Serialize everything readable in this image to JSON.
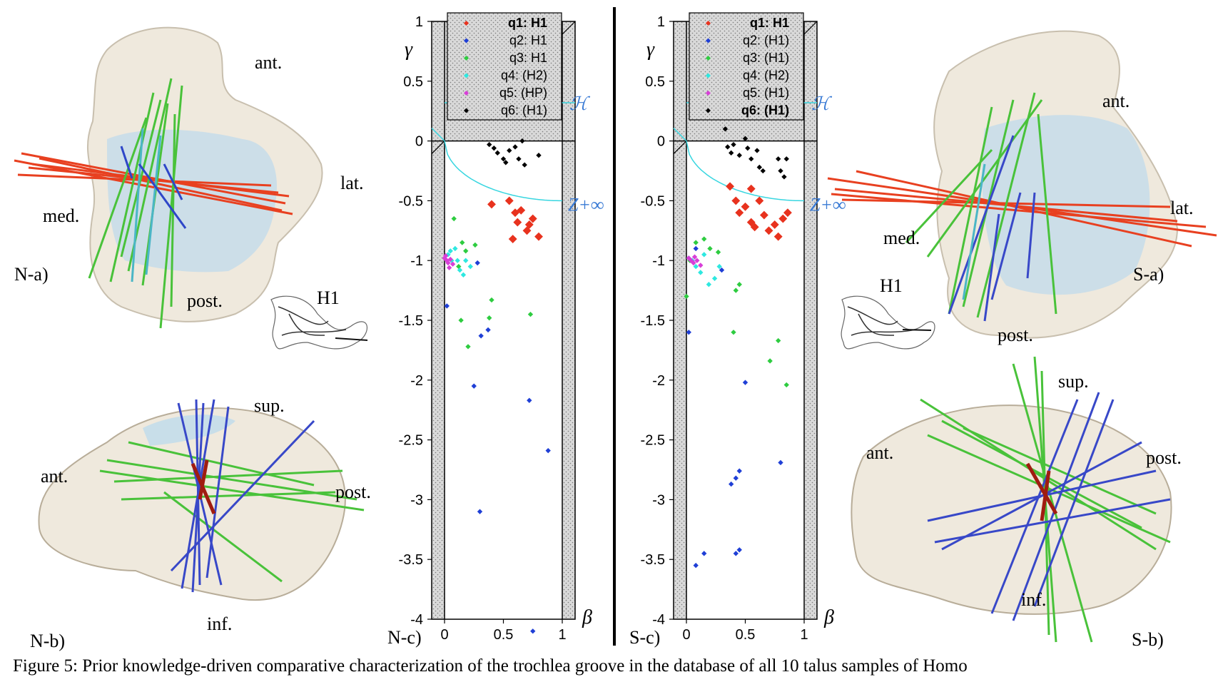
{
  "caption": "Figure 5: Prior knowledge-driven comparative characterization of the trochlea groove in the database of all 10 talus samples of Homo",
  "left_panels": {
    "na_label": "N-a)",
    "nb_label": "N-b)",
    "na_ant": "ant.",
    "na_lat": "lat.",
    "na_med": "med.",
    "na_post": "post.",
    "nb_sup": "sup.",
    "nb_ant": "ant.",
    "nb_post": "post.",
    "nb_inf": "inf."
  },
  "right_panels": {
    "sa_label": "S-a)",
    "sb_label": "S-b)",
    "sa_ant": "ant.",
    "sa_lat": "lat.",
    "sa_med": "med.",
    "sa_post": "post.",
    "sb_sup": "sup.",
    "sb_ant": "ant.",
    "sb_post": "post.",
    "sb_inf": "inf."
  },
  "hyperboloid_label": "H1",
  "chart_data": [
    {
      "type": "scatter",
      "panel_label": "N-c)",
      "xlabel": "β",
      "ylabel": "γ",
      "xlim": [
        0,
        1
      ],
      "ylim": [
        -4,
        1
      ],
      "xticks": [
        "0",
        "0.5",
        "1"
      ],
      "yticks": [
        "1",
        "0.5",
        "0",
        "-0.5",
        "-1",
        "-1.5",
        "-2",
        "-2.5",
        "-3",
        "-3.5",
        "-4"
      ],
      "curve_labels": [
        "H",
        "Z+∞"
      ],
      "legend_position": "top",
      "series": [
        {
          "name": "q1: H1",
          "bold": true,
          "color": "#e8321e",
          "points": [
            [
              0.4,
              -0.53
            ],
            [
              0.55,
              -0.5
            ],
            [
              0.6,
              -0.6
            ],
            [
              0.62,
              -0.68
            ],
            [
              0.65,
              -0.58
            ],
            [
              0.7,
              -0.75
            ],
            [
              0.72,
              -0.7
            ],
            [
              0.8,
              -0.8
            ],
            [
              0.58,
              -0.82
            ],
            [
              0.75,
              -0.65
            ]
          ]
        },
        {
          "name": "q2: H1",
          "bold": false,
          "color": "#1f3fd6",
          "points": [
            [
              0.02,
              -1.38
            ],
            [
              0.28,
              -1.02
            ],
            [
              0.31,
              -1.63
            ],
            [
              0.37,
              -1.58
            ],
            [
              0.25,
              -2.05
            ],
            [
              0.3,
              -3.1
            ],
            [
              0.72,
              -2.17
            ],
            [
              0.88,
              -2.59
            ],
            [
              0.75,
              -4.1
            ]
          ]
        },
        {
          "name": "q3: H1",
          "bold": false,
          "color": "#2ecc40",
          "points": [
            [
              0.08,
              -0.65
            ],
            [
              0.15,
              -0.85
            ],
            [
              0.18,
              -0.92
            ],
            [
              0.26,
              -0.87
            ],
            [
              0.12,
              -1.05
            ],
            [
              0.4,
              -1.33
            ],
            [
              0.38,
              -1.48
            ],
            [
              0.2,
              -1.72
            ],
            [
              0.73,
              -1.45
            ],
            [
              0.14,
              -1.5
            ]
          ]
        },
        {
          "name": "q4: (H2)",
          "bold": false,
          "color": "#2ee8e0",
          "points": [
            [
              0.03,
              -0.95
            ],
            [
              0.06,
              -1.0
            ],
            [
              0.09,
              -0.9
            ],
            [
              0.11,
              -1.0
            ],
            [
              0.13,
              -1.08
            ],
            [
              0.16,
              -1.12
            ],
            [
              0.22,
              -1.05
            ],
            [
              0.05,
              -0.92
            ],
            [
              0.18,
              -1.0
            ]
          ]
        },
        {
          "name": "q5: (HP)",
          "bold": false,
          "color": "#d83fd8",
          "points": [
            [
              0.0,
              -0.98
            ],
            [
              0.02,
              -1.0
            ],
            [
              0.03,
              -1.02
            ],
            [
              0.05,
              -0.99
            ],
            [
              0.07,
              -1.03
            ],
            [
              0.04,
              -1.06
            ],
            [
              0.01,
              -0.96
            ]
          ]
        },
        {
          "name": "q6: (H1)",
          "bold": false,
          "color": "#000000",
          "points": [
            [
              0.38,
              -0.03
            ],
            [
              0.42,
              -0.06
            ],
            [
              0.45,
              -0.1
            ],
            [
              0.5,
              -0.15
            ],
            [
              0.55,
              -0.08
            ],
            [
              0.6,
              -0.05
            ],
            [
              0.63,
              -0.15
            ],
            [
              0.66,
              0.0
            ],
            [
              0.68,
              -0.2
            ],
            [
              0.8,
              -0.12
            ],
            [
              0.52,
              -0.18
            ]
          ]
        }
      ]
    },
    {
      "type": "scatter",
      "panel_label": "S-c)",
      "xlabel": "β",
      "ylabel": "γ",
      "xlim": [
        0,
        1
      ],
      "ylim": [
        -4,
        1
      ],
      "xticks": [
        "0",
        "0.5",
        "1"
      ],
      "yticks": [
        "1",
        "0.5",
        "0",
        "-0.5",
        "-1",
        "-1.5",
        "-2",
        "-2.5",
        "-3",
        "-3.5",
        "-4"
      ],
      "curve_labels": [
        "H",
        "Z+∞"
      ],
      "legend_position": "top",
      "series": [
        {
          "name": "q1: H1",
          "bold": true,
          "color": "#e8321e",
          "points": [
            [
              0.37,
              -0.38
            ],
            [
              0.42,
              -0.5
            ],
            [
              0.45,
              -0.6
            ],
            [
              0.5,
              -0.55
            ],
            [
              0.55,
              -0.68
            ],
            [
              0.58,
              -0.72
            ],
            [
              0.62,
              -0.5
            ],
            [
              0.66,
              -0.62
            ],
            [
              0.7,
              -0.75
            ],
            [
              0.75,
              -0.7
            ],
            [
              0.78,
              -0.8
            ],
            [
              0.82,
              -0.65
            ],
            [
              0.86,
              -0.6
            ],
            [
              0.55,
              -0.4
            ]
          ]
        },
        {
          "name": "q2: (H1)",
          "bold": false,
          "color": "#1f3fd6",
          "points": [
            [
              0.02,
              -1.6
            ],
            [
              0.08,
              -0.9
            ],
            [
              0.3,
              -1.08
            ],
            [
              0.5,
              -2.02
            ],
            [
              0.38,
              -2.87
            ],
            [
              0.45,
              -2.76
            ],
            [
              0.42,
              -2.82
            ],
            [
              0.8,
              -2.69
            ],
            [
              0.42,
              -3.45
            ],
            [
              0.45,
              -3.42
            ],
            [
              0.15,
              -3.45
            ],
            [
              0.08,
              -3.55
            ]
          ]
        },
        {
          "name": "q3: (H1)",
          "bold": false,
          "color": "#2ecc40",
          "points": [
            [
              0.0,
              -1.3
            ],
            [
              0.03,
              -1.0
            ],
            [
              0.08,
              -0.85
            ],
            [
              0.15,
              -0.82
            ],
            [
              0.2,
              -0.9
            ],
            [
              0.27,
              -0.93
            ],
            [
              0.4,
              -1.6
            ],
            [
              0.42,
              -1.25
            ],
            [
              0.45,
              -1.2
            ],
            [
              0.78,
              -1.67
            ],
            [
              0.85,
              -2.04
            ],
            [
              0.71,
              -1.84
            ]
          ]
        },
        {
          "name": "q4: (H2)",
          "bold": false,
          "color": "#2ee8e0",
          "points": [
            [
              0.02,
              -0.98
            ],
            [
              0.05,
              -1.0
            ],
            [
              0.08,
              -1.05
            ],
            [
              0.12,
              -1.1
            ],
            [
              0.15,
              -0.95
            ],
            [
              0.19,
              -1.2
            ],
            [
              0.24,
              -1.15
            ],
            [
              0.28,
              -1.05
            ]
          ]
        },
        {
          "name": "q5: (H1)",
          "bold": false,
          "color": "#d83fd8",
          "points": [
            [
              0.02,
              -0.98
            ],
            [
              0.04,
              -1.0
            ],
            [
              0.06,
              -1.02
            ],
            [
              0.09,
              -1.0
            ],
            [
              0.12,
              -1.04
            ],
            [
              0.07,
              -0.97
            ]
          ]
        },
        {
          "name": "q6: (H1)",
          "bold": true,
          "color": "#000000",
          "points": [
            [
              0.33,
              0.1
            ],
            [
              0.35,
              -0.05
            ],
            [
              0.38,
              -0.1
            ],
            [
              0.4,
              -0.03
            ],
            [
              0.45,
              -0.12
            ],
            [
              0.5,
              0.02
            ],
            [
              0.52,
              -0.06
            ],
            [
              0.55,
              -0.15
            ],
            [
              0.6,
              -0.08
            ],
            [
              0.62,
              -0.22
            ],
            [
              0.65,
              -0.25
            ],
            [
              0.78,
              -0.15
            ],
            [
              0.8,
              -0.25
            ],
            [
              0.85,
              -0.15
            ],
            [
              0.83,
              -0.3
            ]
          ]
        }
      ]
    }
  ]
}
